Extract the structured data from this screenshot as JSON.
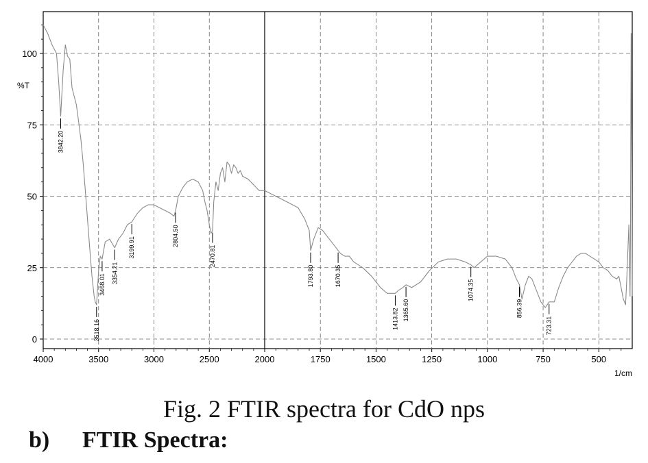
{
  "chart_data": {
    "type": "line",
    "xlabel": "1/cm",
    "ylabel": "%T",
    "xlim": [
      4000,
      350
    ],
    "ylim": [
      -3,
      115
    ],
    "x_ticks": [
      4000,
      3500,
      3000,
      2500,
      2000,
      1750,
      1500,
      1250,
      1000,
      750,
      500
    ],
    "y_ticks": [
      0,
      25,
      50,
      75,
      100
    ],
    "grid": true,
    "series": [
      {
        "x": [
          4000,
          3960,
          3920,
          3880,
          3860,
          3842.2,
          3820,
          3800,
          3780,
          3760,
          3740,
          3720,
          3700,
          3680,
          3660,
          3640,
          3620,
          3600,
          3580,
          3560,
          3540,
          3530,
          3518.16,
          3500,
          3485,
          3468.01,
          3440,
          3400,
          3370,
          3354.21,
          3320,
          3280,
          3240,
          3199.91,
          3150,
          3100,
          3050,
          3000,
          2950,
          2900,
          2850,
          2820,
          2804.5,
          2780,
          2740,
          2700,
          2650,
          2600,
          2560,
          2540,
          2520,
          2500,
          2485,
          2470.81,
          2460,
          2440,
          2420,
          2400,
          2380,
          2360,
          2340,
          2320,
          2300,
          2280,
          2260,
          2240,
          2220,
          2200,
          2150,
          2100,
          2050,
          2000,
          1950,
          1900,
          1850,
          1820,
          1800,
          1793.8,
          1780,
          1760,
          1740,
          1720,
          1700,
          1680,
          1670.35,
          1660,
          1640,
          1620,
          1600,
          1560,
          1520,
          1480,
          1450,
          1413.82,
          1400,
          1380,
          1365.6,
          1340,
          1300,
          1260,
          1220,
          1180,
          1140,
          1100,
          1074.35,
          1060,
          1030,
          1000,
          960,
          920,
          890,
          870,
          856.39,
          845,
          830,
          815,
          800,
          780,
          760,
          740,
          723.31,
          700,
          680,
          660,
          640,
          620,
          600,
          580,
          560,
          540,
          520,
          500,
          480,
          460,
          440,
          420,
          410,
          400,
          390,
          380,
          375,
          370,
          365,
          360,
          358,
          355,
          352,
          350
        ],
        "y": [
          110,
          107,
          103,
          100,
          90,
          78,
          94,
          103,
          99,
          98,
          88,
          85,
          82,
          76,
          70,
          62,
          52,
          42,
          32,
          22,
          15,
          13,
          12,
          24,
          29,
          28,
          34,
          35,
          33,
          32,
          35,
          37,
          40,
          41,
          44,
          46,
          47,
          47,
          46,
          45,
          44,
          43,
          45,
          50,
          53,
          55,
          56,
          55,
          52,
          48,
          45,
          40,
          37,
          38,
          48,
          55,
          52,
          58,
          60,
          55,
          62,
          61,
          58,
          61,
          60,
          58,
          59,
          57,
          56,
          54,
          52,
          52,
          50,
          48,
          46,
          42,
          38,
          31,
          35,
          39,
          38,
          36,
          34,
          32,
          31,
          30,
          29,
          29,
          27,
          25,
          22,
          18,
          16,
          16,
          17,
          18,
          19,
          18,
          20,
          24,
          27,
          28,
          28,
          27,
          26,
          25,
          27,
          29,
          29,
          28,
          25,
          21,
          19,
          14,
          19,
          22,
          21,
          17,
          13,
          11,
          13,
          13,
          18,
          22,
          25,
          27,
          29,
          30,
          30,
          29,
          28,
          27,
          25,
          24,
          22,
          21,
          22,
          18,
          14,
          12,
          20,
          30,
          40,
          15,
          35,
          107,
          60,
          15
        ]
      }
    ],
    "annotations": [
      {
        "x": 3842.2,
        "label": "3842.20"
      },
      {
        "x": 3518.16,
        "label": "3518.16"
      },
      {
        "x": 3468.01,
        "label": "3468.01"
      },
      {
        "x": 3354.21,
        "label": "3354.21"
      },
      {
        "x": 3199.91,
        "label": "3199.91"
      },
      {
        "x": 2804.5,
        "label": "2804.50"
      },
      {
        "x": 2470.81,
        "label": "2470.81"
      },
      {
        "x": 1793.8,
        "label": "1793.80"
      },
      {
        "x": 1670.35,
        "label": "1670.35"
      },
      {
        "x": 1413.82,
        "label": "1413.82"
      },
      {
        "x": 1365.6,
        "label": "1365.60"
      },
      {
        "x": 1074.35,
        "label": "1074.35"
      },
      {
        "x": 856.39,
        "label": "856.39"
      },
      {
        "x": 723.31,
        "label": "723.31"
      }
    ]
  },
  "caption": "Fig. 2 FTIR spectra for CdO nps",
  "section": {
    "number": "b)",
    "title": "FTIR Spectra:"
  }
}
